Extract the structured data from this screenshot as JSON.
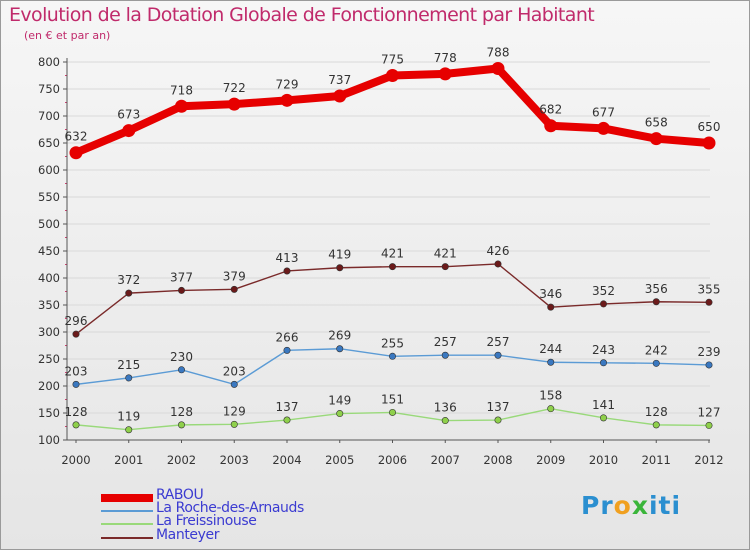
{
  "title": "Evolution de la Dotation Globale de Fonctionnement par Habitant",
  "subtitle": "(en € et par an)",
  "logo": "Proxiti",
  "colors": {
    "title": "#c02a6b",
    "legend_text": "#3b3bd1",
    "axis": "#555555",
    "grid": "#d9d9d9"
  },
  "chart_data": {
    "type": "line",
    "title": "Evolution de la Dotation Globale de Fonctionnement par Habitant",
    "subtitle": "(en € et par an)",
    "xlabel": "",
    "ylabel": "",
    "x": [
      "2000",
      "2001",
      "2002",
      "2003",
      "2004",
      "2005",
      "2006",
      "2007",
      "2008",
      "2009",
      "2010",
      "2011",
      "2012"
    ],
    "ylim": [
      100,
      800
    ],
    "yticks": [
      100,
      150,
      200,
      250,
      300,
      350,
      400,
      450,
      500,
      550,
      600,
      650,
      700,
      750,
      800
    ],
    "grid": true,
    "legend_position": "bottom-left",
    "series": [
      {
        "name": "RABOU",
        "color": "#e60000",
        "marker": "#e60000",
        "values": [
          632,
          673,
          718,
          722,
          729,
          737,
          775,
          778,
          788,
          682,
          677,
          658,
          650
        ]
      },
      {
        "name": "La Roche-des-Arnauds",
        "color": "#5b9bd5",
        "marker": "#3a78c0",
        "values": [
          203,
          215,
          230,
          203,
          266,
          269,
          255,
          257,
          257,
          244,
          243,
          242,
          239
        ]
      },
      {
        "name": "La Freissinouse",
        "color": "#99d97a",
        "marker": "#8fd04b",
        "values": [
          128,
          119,
          128,
          129,
          137,
          149,
          151,
          136,
          137,
          158,
          141,
          128,
          127
        ]
      },
      {
        "name": "Manteyer",
        "color": "#7a2a2a",
        "marker": "#6b1a1a",
        "values": [
          296,
          372,
          377,
          379,
          413,
          419,
          421,
          421,
          426,
          346,
          352,
          356,
          355
        ]
      }
    ]
  }
}
